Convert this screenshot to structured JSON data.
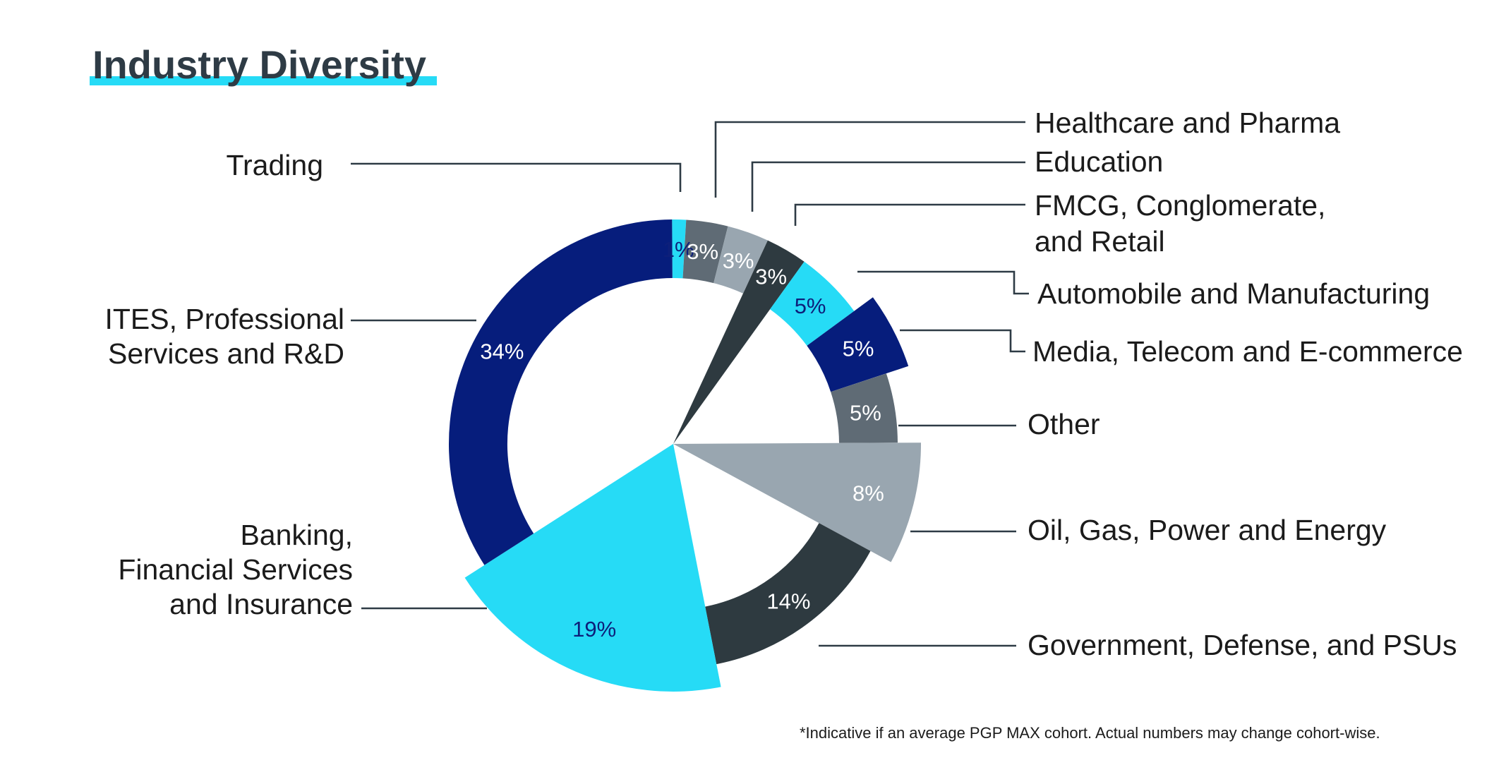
{
  "title": "Industry Diversity",
  "footnote": "*Indicative if an average PGP MAX cohort. Actual numbers may change cohort-wise.",
  "colors": {
    "title_underline": "#26dbf6",
    "title_text": "#2e3b45",
    "leader": "#2e3b45"
  },
  "chart_data": {
    "type": "pie",
    "title": "Industry Diversity",
    "slices": [
      {
        "label": "Trading",
        "value": 1,
        "display": "1%",
        "color": "#26dbf6",
        "text_color": "#0d1f7a",
        "style": "ring"
      },
      {
        "label": "Healthcare and Pharma",
        "value": 3,
        "display": "3%",
        "color": "#5f6b75",
        "text_color": "#ffffff",
        "style": "ring"
      },
      {
        "label": "Education",
        "value": 3,
        "display": "3%",
        "color": "#99a6b0",
        "text_color": "#ffffff",
        "style": "ring"
      },
      {
        "label": "FMCG, Conglomerate, and Retail",
        "label_lines": [
          "FMCG, Conglomerate,",
          "and Retail"
        ],
        "value": 3,
        "display": "3%",
        "color": "#2e3a40",
        "text_color": "#ffffff",
        "style": "wedge"
      },
      {
        "label": "Automobile and Manufacturing",
        "value": 5,
        "display": "5%",
        "color": "#26dbf6",
        "text_color": "#0d1f7a",
        "style": "ring"
      },
      {
        "label": "Media, Telecom and E-commerce",
        "value": 5,
        "display": "5%",
        "color": "#061d7c",
        "text_color": "#ffffff",
        "style": "ring-big"
      },
      {
        "label": "Other",
        "value": 5,
        "display": "5%",
        "color": "#5f6b75",
        "text_color": "#ffffff",
        "style": "ring"
      },
      {
        "label": "Oil, Gas, Power and Energy",
        "value": 8,
        "display": "8%",
        "color": "#99a6b0",
        "text_color": "#ffffff",
        "style": "wedge-big"
      },
      {
        "label": "Government, Defense, and PSUs",
        "value": 14,
        "display": "14%",
        "color": "#2e3a40",
        "text_color": "#ffffff",
        "style": "ring"
      },
      {
        "label": "Banking, Financial Services and Insurance",
        "label_lines": [
          "Banking,",
          "Financial Services",
          "and Insurance"
        ],
        "value": 19,
        "display": "19%",
        "color": "#26dbf6",
        "text_color": "#0d1f7a",
        "style": "wedge-big"
      },
      {
        "label": "ITES, Professional Services and R&D",
        "label_lines": [
          "ITES, Professional",
          "Services and R&D"
        ],
        "value": 34,
        "display": "34%",
        "color": "#061d7c",
        "text_color": "#ffffff",
        "style": "ring"
      }
    ]
  }
}
